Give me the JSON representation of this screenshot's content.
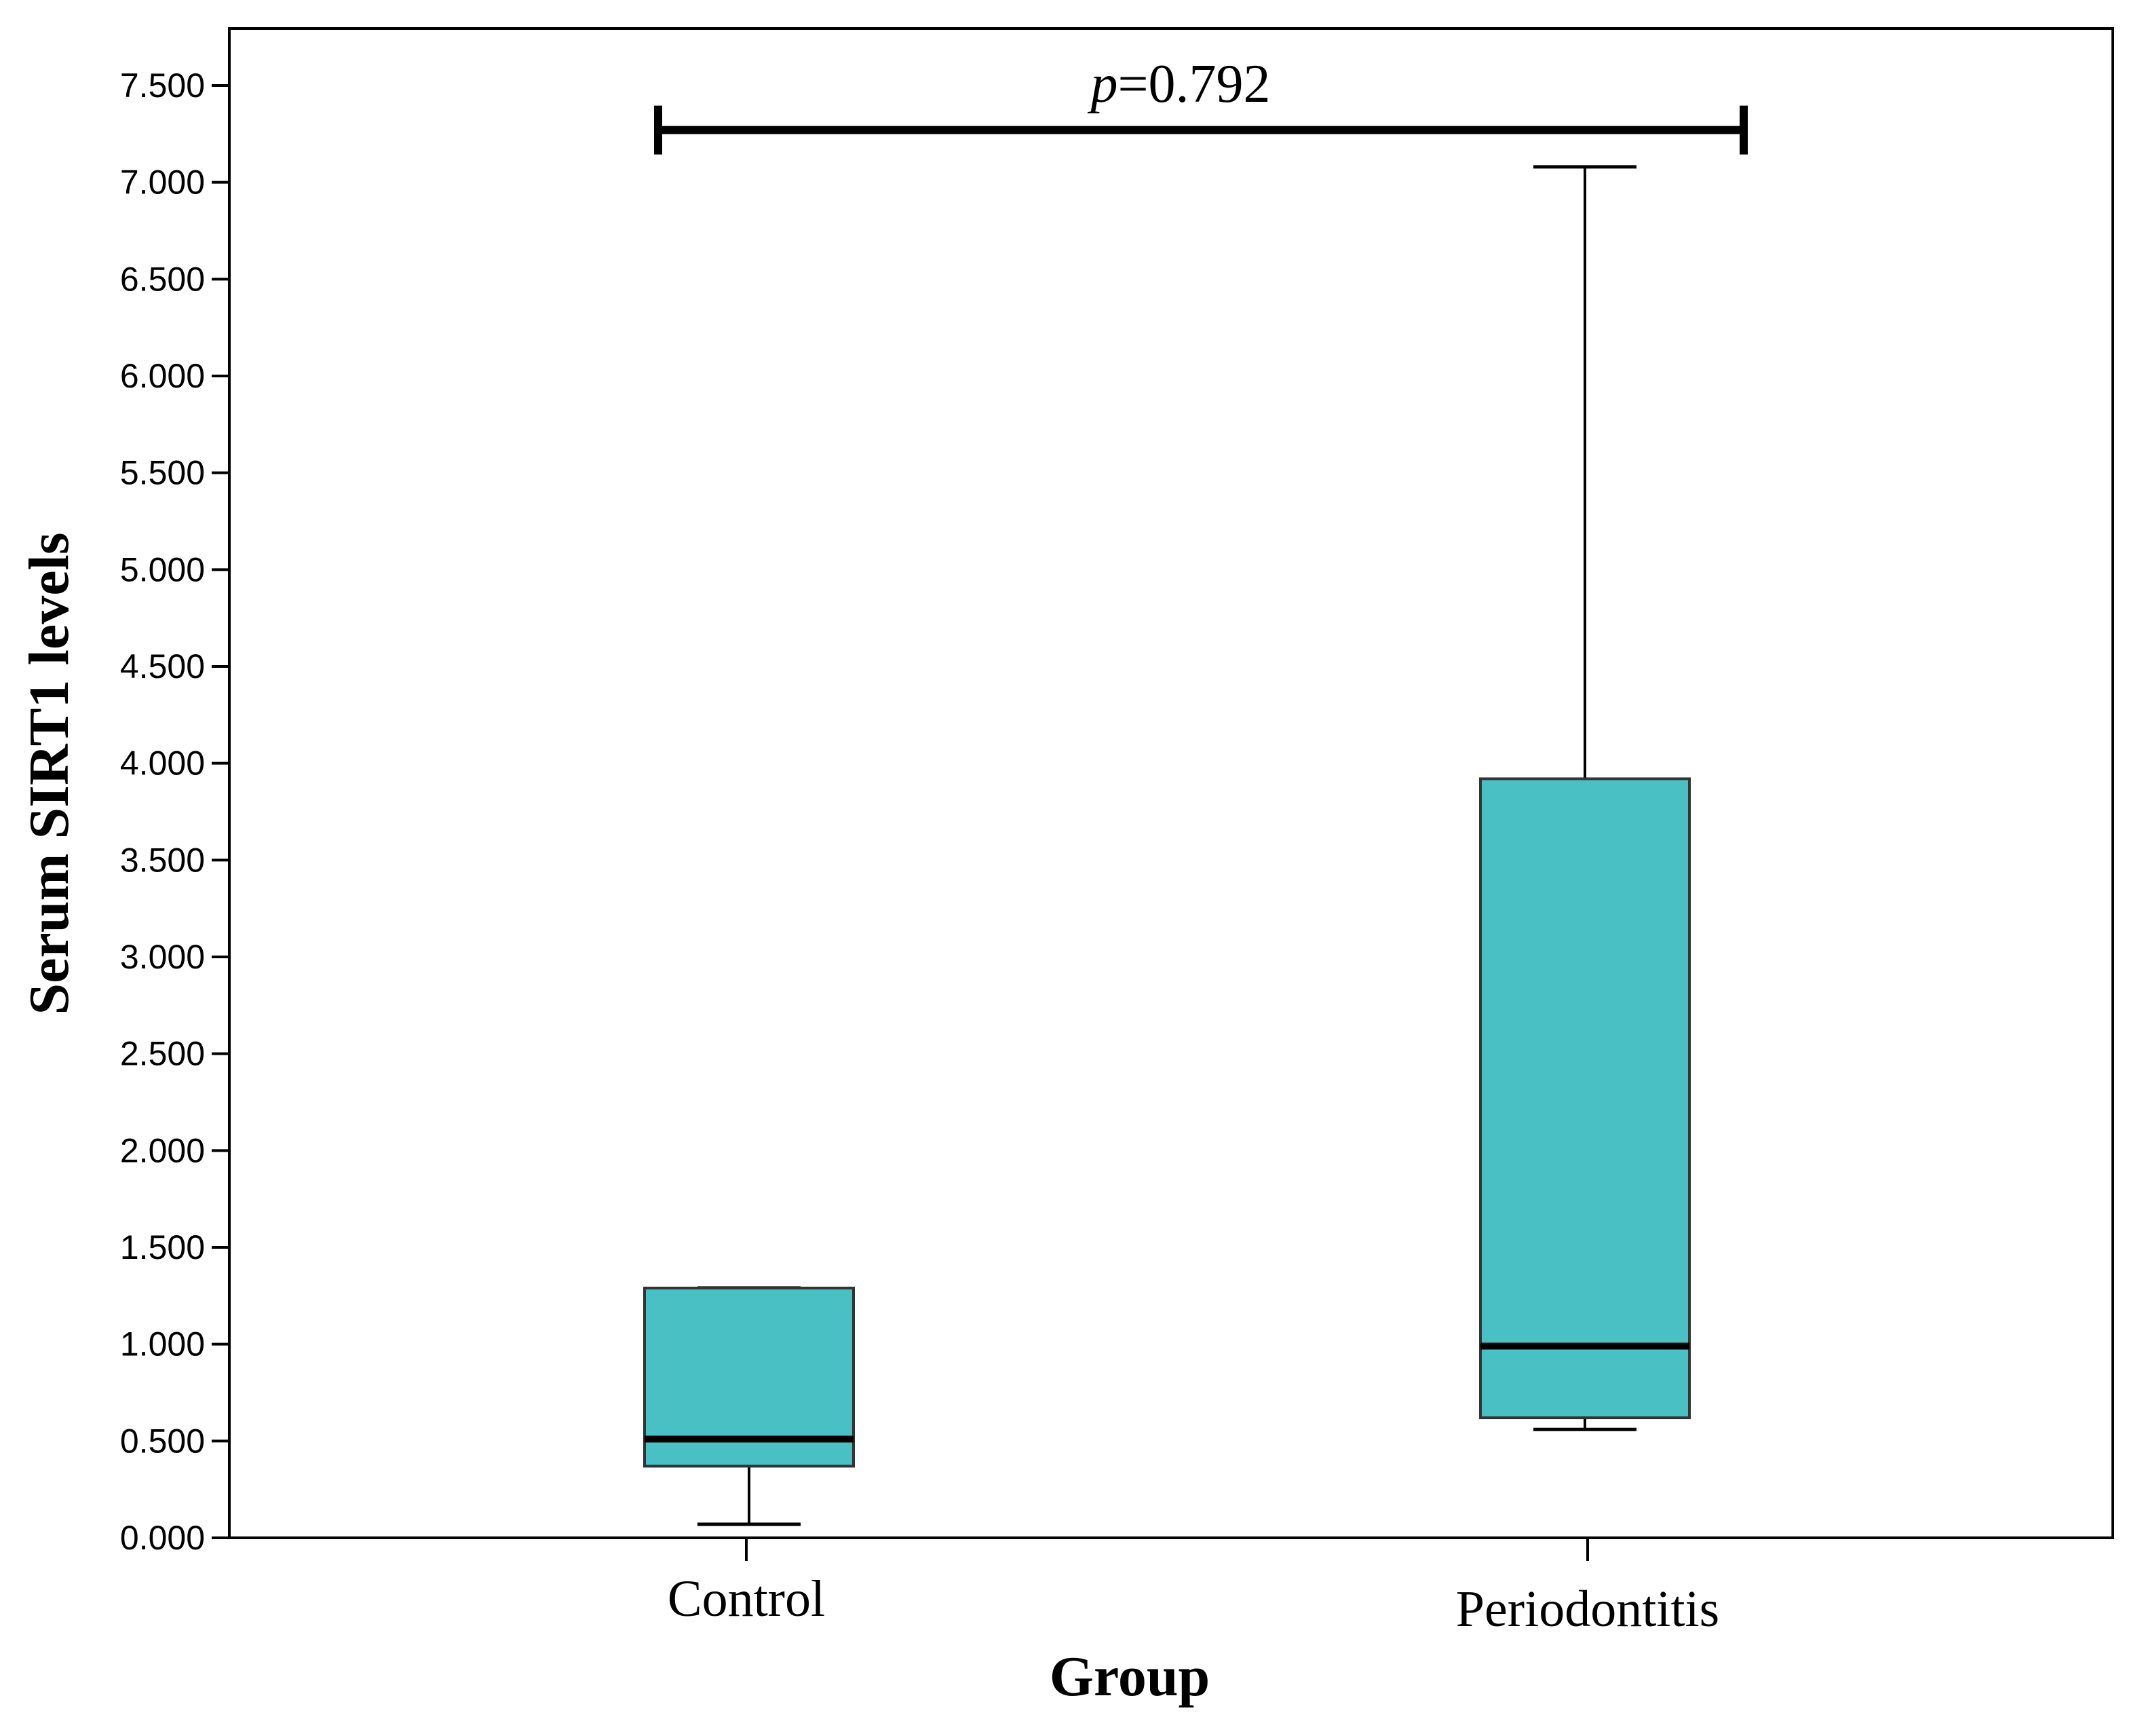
{
  "chart_data": {
    "type": "boxplot",
    "title": "",
    "xlabel": "Group",
    "ylabel": "Serum SIRT1 levels",
    "ylim": [
      0,
      7.5
    ],
    "yticks": [
      "0.000",
      "0.500",
      "1.000",
      "1.500",
      "2.000",
      "2.500",
      "3.000",
      "3.500",
      "4.000",
      "4.500",
      "5.000",
      "5.500",
      "6.000",
      "6.500",
      "7.000",
      "7.500"
    ],
    "ytick_values": [
      0,
      0.5,
      1,
      1.5,
      2,
      2.5,
      3,
      3.5,
      4,
      4.5,
      5,
      5.5,
      6,
      6.5,
      7,
      7.5
    ],
    "categories": [
      "Control",
      "Periodontitis"
    ],
    "boxes": [
      {
        "name": "Control",
        "min": 0.07,
        "q1": 0.37,
        "median": 0.51,
        "q3": 1.29,
        "max": 1.29
      },
      {
        "name": "Periodontitis",
        "min": 0.56,
        "q1": 0.62,
        "median": 0.99,
        "q3": 3.92,
        "max": 7.08
      }
    ],
    "box_color": "#48c0c4",
    "annotation": {
      "italic": "p",
      "text": "=0.792",
      "from": "Control",
      "to": "Periodontitis",
      "y": 7.27
    },
    "grid": false,
    "legend": "none"
  }
}
